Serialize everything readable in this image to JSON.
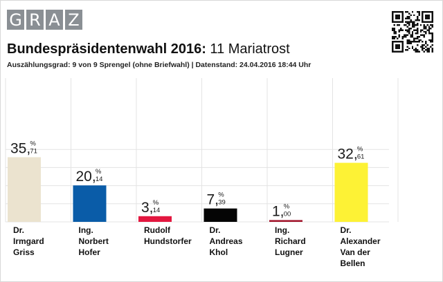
{
  "header": {
    "logo_letters": [
      "G",
      "R",
      "A",
      "Z"
    ],
    "title_bold": "Bundespräsidentenwahl 2016:",
    "title_rest": " 11 Mariatrost",
    "subtitle": "Auszählungsgrad: 9 von 9 Sprengel (ohne Briefwahl) | Datenstand: 24.04.2016 18:44 Uhr"
  },
  "chart_data": {
    "type": "bar",
    "title": "Bundespräsidentenwahl 2016: 11 Mariatrost",
    "unit": "%",
    "ylim": [
      0,
      40
    ],
    "grid": true,
    "categories": [
      [
        "Dr.",
        "Irmgard",
        "Griss"
      ],
      [
        "Ing.",
        "Norbert",
        "Hofer"
      ],
      [
        "Rudolf",
        "Hundstorfer"
      ],
      [
        "Dr.",
        "Andreas",
        "Khol"
      ],
      [
        "Ing.",
        "Richard",
        "Lugner"
      ],
      [
        "Dr.",
        "Alexander",
        "Van der",
        "Bellen"
      ]
    ],
    "values": [
      35.71,
      20.14,
      3.14,
      7.39,
      1.0,
      32.61
    ],
    "value_int": [
      "35",
      "20",
      "3",
      "7",
      "1",
      "32"
    ],
    "value_dec": [
      "71",
      "14",
      "14",
      "39",
      "00",
      "61"
    ],
    "colors": [
      "#ebe3cf",
      "#0a5ca8",
      "#e3173f",
      "#050505",
      "#a3192f",
      "#fdf235"
    ]
  }
}
